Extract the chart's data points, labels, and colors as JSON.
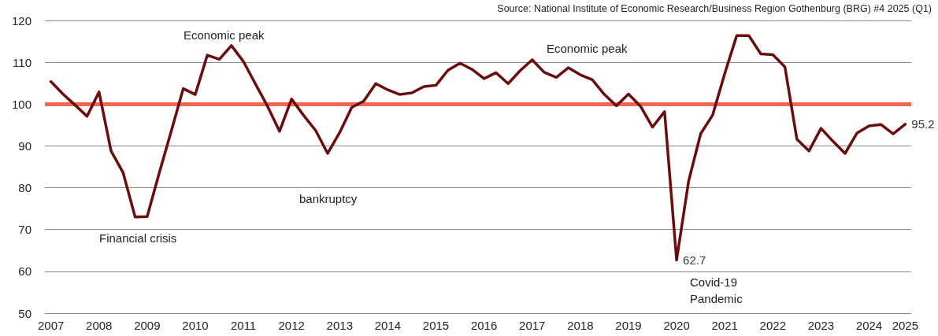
{
  "chart_data": {
    "type": "line",
    "categories": [
      "2007",
      null,
      null,
      null,
      "2008",
      null,
      null,
      null,
      "2009",
      null,
      null,
      null,
      "2010",
      null,
      null,
      null,
      "2011",
      null,
      null,
      null,
      "2012",
      null,
      null,
      null,
      "2013",
      null,
      null,
      null,
      "2014",
      null,
      null,
      null,
      "2015",
      null,
      null,
      null,
      "2016",
      null,
      null,
      null,
      "2017",
      null,
      null,
      null,
      "2018",
      null,
      null,
      null,
      "2019",
      null,
      null,
      null,
      "2020",
      null,
      null,
      null,
      "2021",
      null,
      null,
      null,
      "2022",
      null,
      null,
      null,
      "2023",
      null,
      null,
      null,
      "2024",
      null,
      null,
      "2025"
    ],
    "series": [
      {
        "color": "#6b0d0d",
        "values": [
          105.4,
          102.4,
          99.8,
          97.1,
          102.9,
          88.8,
          83.6,
          73.0,
          73.1,
          83.5,
          93.5,
          103.7,
          102.3,
          111.7,
          110.7,
          114.0,
          110.2,
          104.8,
          99.5,
          93.5,
          101.2,
          97.3,
          93.7,
          88.2,
          93.2,
          99.2,
          100.7,
          104.9,
          103.4,
          102.3,
          102.7,
          104.2,
          104.5,
          108.1,
          109.8,
          108.3,
          106.1,
          107.5,
          104.9,
          108.0,
          110.6,
          107.6,
          106.4,
          108.7,
          107.0,
          105.8,
          102.3,
          99.6,
          102.4,
          99.5,
          94.5,
          98.2,
          62.7,
          81.6,
          92.9,
          97.4,
          107.3,
          116.4,
          116.4,
          112.0,
          111.8,
          108.9,
          91.6,
          88.8,
          94.2,
          91.1,
          88.2,
          93.1,
          94.8,
          95.1,
          92.9,
          95.2
        ],
        "value_labels": [
          null,
          null,
          null,
          null,
          null,
          null,
          null,
          null,
          null,
          null,
          null,
          null,
          null,
          null,
          null,
          null,
          null,
          null,
          null,
          null,
          null,
          null,
          null,
          null,
          null,
          null,
          null,
          null,
          null,
          null,
          null,
          null,
          null,
          null,
          null,
          null,
          null,
          null,
          null,
          null,
          null,
          null,
          null,
          null,
          null,
          null,
          null,
          null,
          null,
          null,
          null,
          null,
          "62.7",
          null,
          null,
          null,
          null,
          null,
          null,
          null,
          null,
          null,
          null,
          null,
          null,
          null,
          null,
          null,
          null,
          null,
          null,
          "95.2"
        ]
      }
    ],
    "ylim": [
      50,
      120
    ],
    "yticks": [
      50,
      60,
      70,
      80,
      90,
      100,
      110,
      120
    ],
    "grid": "y",
    "marker": "none",
    "line_style": "solid",
    "ref_lines": [
      {
        "axis": "y",
        "value": 100,
        "color": "#f26652"
      }
    ],
    "annotations": [
      "Source: National Institute of Economic Research/Business Region Gothenburg (BRG) #4 2025 (Q1)",
      "Economic peak",
      "Financial crisis",
      "bankruptcy",
      "Economic peak",
      "Covid-19\nPandemic"
    ]
  }
}
